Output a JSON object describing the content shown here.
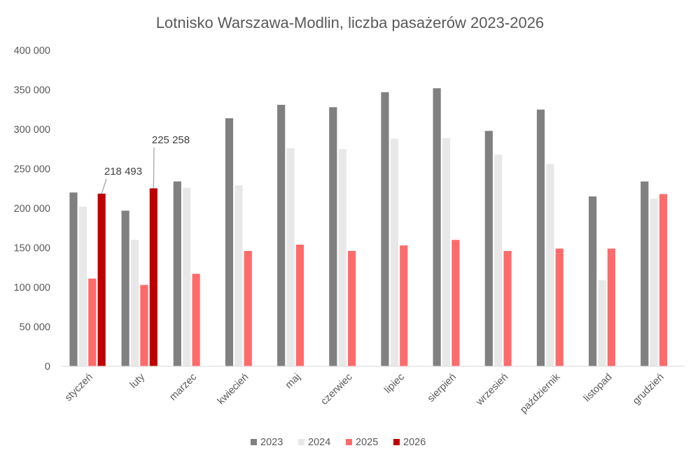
{
  "chart_data": {
    "type": "bar",
    "title": "Lotnisko Warszawa-Modlin, liczba pasażerów 2023-2026",
    "xlabel": "",
    "ylabel": "",
    "ylim": [
      0,
      400000
    ],
    "ytick_values": [
      0,
      50000,
      100000,
      150000,
      200000,
      250000,
      300000,
      350000,
      400000
    ],
    "ytick_labels": [
      "0",
      "50 000",
      "100 000",
      "150 000",
      "200 000",
      "250 000",
      "300 000",
      "350 000",
      "400 000"
    ],
    "grid": false,
    "legend_position": "bottom",
    "categories": [
      "styczeń",
      "luty",
      "marzec",
      "kwiecień",
      "maj",
      "czerwiec",
      "lipiec",
      "sierpień",
      "wrzesień",
      "październik",
      "listopad",
      "grudzień"
    ],
    "series": [
      {
        "name": "2023",
        "color": "#808080",
        "values": [
          220000,
          197000,
          234000,
          314000,
          331000,
          328000,
          347000,
          352000,
          298000,
          325000,
          215000,
          234000
        ]
      },
      {
        "name": "2024",
        "color": "#e8e8e8",
        "values": [
          202000,
          160000,
          226000,
          229000,
          276000,
          275000,
          288000,
          289000,
          268000,
          256000,
          109000,
          212000
        ]
      },
      {
        "name": "2025",
        "color": "#ff6b6b",
        "values": [
          111000,
          103000,
          117000,
          146000,
          154000,
          146000,
          153000,
          160000,
          146000,
          149000,
          149000,
          218000
        ]
      },
      {
        "name": "2026",
        "color": "#c00000",
        "values": [
          218493,
          225258,
          null,
          null,
          null,
          null,
          null,
          null,
          null,
          null,
          null,
          null
        ]
      }
    ],
    "annotations": [
      {
        "series": "2026",
        "category": "styczeń",
        "label": "218 493"
      },
      {
        "series": "2026",
        "category": "luty",
        "label": "225 258"
      }
    ]
  }
}
